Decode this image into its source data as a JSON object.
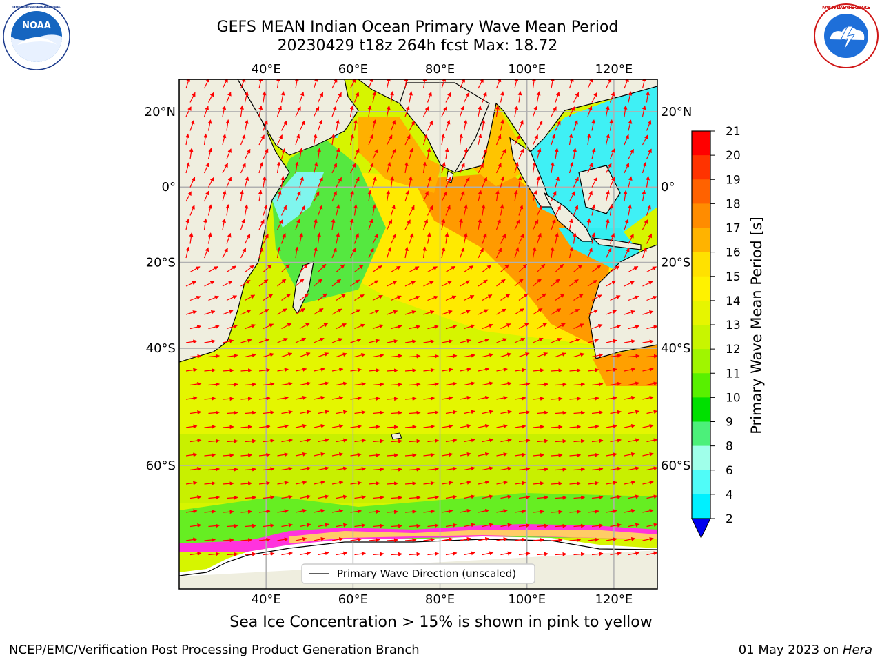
{
  "header": {
    "title_line1": "GEFS MEAN Indian Ocean Primary Wave Mean Period",
    "title_line2": "20230429 t18z 264h fcst   Max: 18.72",
    "left_logo": "noaa-logo",
    "right_logo": "nws-logo",
    "noaa_logo_text": "NOAA",
    "noaa_ring_text": "NATIONAL OCEANIC AND ATMOSPHERIC ADMINISTRATION · U.S. DEPARTMENT OF COMMERCE",
    "nws_ring_text": "NATIONAL WEATHER SERVICE"
  },
  "map": {
    "lon_labels": [
      "40°E",
      "60°E",
      "80°E",
      "100°E",
      "120°E"
    ],
    "lat_labels": [
      "20°N",
      "0°",
      "20°S",
      "40°S",
      "60°S"
    ],
    "lon_values": [
      40,
      60,
      80,
      100,
      120
    ],
    "lat_values": [
      20,
      0,
      -20,
      -40,
      -60
    ],
    "lon_range": [
      20,
      130
    ],
    "lat_range": [
      -73,
      28
    ],
    "legend_label": "Primary Wave Direction (unscaled)",
    "land_color": "#efeedf",
    "arrow_color": "#ff0000"
  },
  "colorbar": {
    "label": "Primary Wave Mean Period [s]",
    "ticks": [
      "21",
      "20",
      "19",
      "18",
      "17",
      "16",
      "15",
      "14",
      "13",
      "12",
      "11",
      "10",
      "9",
      "8",
      "6",
      "4",
      "2"
    ],
    "colors": [
      "#ff0000",
      "#ff3300",
      "#ff6200",
      "#ff8c00",
      "#ffb300",
      "#ffe100",
      "#fff200",
      "#e6f500",
      "#c8f500",
      "#a0f500",
      "#58f000",
      "#00e000",
      "#4cf07a",
      "#a0ffea",
      "#50fcf8",
      "#00f0ff",
      "#00a8ff",
      "#0060ff",
      "#0000ee"
    ]
  },
  "subtitle": "Sea Ice Concentration > 15% is shown in pink to yellow",
  "footer": {
    "left": "NCEP/EMC/Verification Post Processing Product Generation Branch",
    "right_prefix": "01 May 2023 on ",
    "right_host": "Hera"
  }
}
